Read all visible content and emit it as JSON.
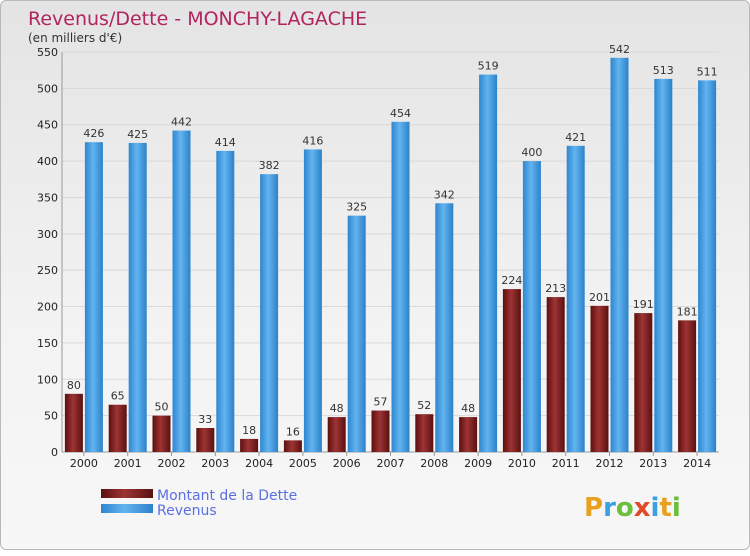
{
  "chart_data": {
    "type": "bar",
    "title": "Revenus/Dette - MONCHY-LAGACHE",
    "subtitle": "(en milliers d'€)",
    "categories": [
      "2000",
      "2001",
      "2002",
      "2003",
      "2004",
      "2005",
      "2006",
      "2007",
      "2008",
      "2009",
      "2010",
      "2011",
      "2012",
      "2013",
      "2014"
    ],
    "series": [
      {
        "name": "Montant de la Dette",
        "color": "#7a1f1f",
        "values": [
          80,
          65,
          50,
          33,
          18,
          16,
          48,
          57,
          52,
          48,
          224,
          213,
          201,
          191,
          181
        ]
      },
      {
        "name": "Revenus",
        "color": "#4a9fe0",
        "values": [
          426,
          425,
          442,
          414,
          382,
          416,
          325,
          454,
          342,
          519,
          400,
          421,
          542,
          513,
          511
        ]
      }
    ],
    "y_ticks": [
      0,
      50,
      100,
      150,
      200,
      250,
      300,
      350,
      400,
      450,
      500,
      550
    ],
    "ylim": [
      0,
      550
    ],
    "grid": true,
    "legend_position": "bottom-left"
  },
  "watermark": "Proxiti"
}
